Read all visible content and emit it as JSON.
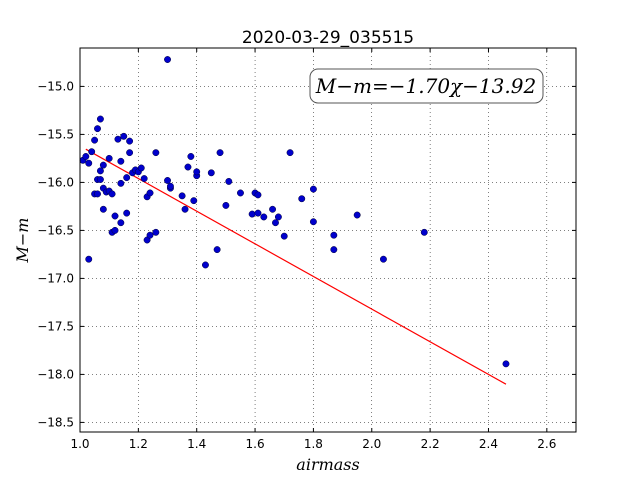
{
  "chart_data": {
    "type": "scatter",
    "title": "2020-03-29_035515",
    "xlabel": "airmass",
    "ylabel": "M−m",
    "xlim": [
      1.0,
      2.7
    ],
    "ylim": [
      -18.6,
      -14.6
    ],
    "y_inverted": true,
    "xticks": [
      "1.0",
      "1.2",
      "1.4",
      "1.6",
      "1.8",
      "2.0",
      "2.2",
      "2.4",
      "2.6"
    ],
    "yticks": [
      "−15.0",
      "−15.5",
      "−16.0",
      "−16.5",
      "−17.0",
      "−17.5",
      "−18.0",
      "−18.5"
    ],
    "grid": true,
    "annotation": "M−m=−1.70χ−13.92",
    "annotation_position": "top-right",
    "fit": {
      "slope": -1.7,
      "intercept": -13.92,
      "x_range": [
        1.02,
        2.46
      ],
      "color": "#ff0000"
    },
    "marker_color": "#0000cc",
    "points": [
      [
        1.01,
        -15.77
      ],
      [
        1.02,
        -15.73
      ],
      [
        1.03,
        -15.8
      ],
      [
        1.03,
        -16.8
      ],
      [
        1.04,
        -15.68
      ],
      [
        1.05,
        -15.56
      ],
      [
        1.05,
        -16.12
      ],
      [
        1.06,
        -16.12
      ],
      [
        1.06,
        -15.97
      ],
      [
        1.06,
        -15.44
      ],
      [
        1.07,
        -15.34
      ],
      [
        1.07,
        -15.88
      ],
      [
        1.07,
        -15.97
      ],
      [
        1.08,
        -15.82
      ],
      [
        1.08,
        -16.06
      ],
      [
        1.08,
        -16.28
      ],
      [
        1.09,
        -16.1
      ],
      [
        1.1,
        -15.75
      ],
      [
        1.1,
        -16.09
      ],
      [
        1.11,
        -16.12
      ],
      [
        1.11,
        -16.52
      ],
      [
        1.12,
        -16.35
      ],
      [
        1.12,
        -16.5
      ],
      [
        1.13,
        -15.55
      ],
      [
        1.14,
        -16.42
      ],
      [
        1.14,
        -15.78
      ],
      [
        1.14,
        -16.01
      ],
      [
        1.15,
        -15.52
      ],
      [
        1.16,
        -16.32
      ],
      [
        1.16,
        -15.95
      ],
      [
        1.17,
        -15.57
      ],
      [
        1.17,
        -15.69
      ],
      [
        1.18,
        -15.9
      ],
      [
        1.19,
        -15.87
      ],
      [
        1.2,
        -15.89
      ],
      [
        1.21,
        -15.85
      ],
      [
        1.22,
        -15.96
      ],
      [
        1.23,
        -16.15
      ],
      [
        1.24,
        -16.11
      ],
      [
        1.23,
        -16.6
      ],
      [
        1.24,
        -16.55
      ],
      [
        1.26,
        -15.69
      ],
      [
        1.26,
        -16.52
      ],
      [
        1.3,
        -14.72
      ],
      [
        1.3,
        -15.98
      ],
      [
        1.31,
        -16.06
      ],
      [
        1.31,
        -16.04
      ],
      [
        1.35,
        -16.14
      ],
      [
        1.36,
        -16.28
      ],
      [
        1.37,
        -15.84
      ],
      [
        1.38,
        -15.73
      ],
      [
        1.39,
        -16.19
      ],
      [
        1.4,
        -15.93
      ],
      [
        1.4,
        -15.89
      ],
      [
        1.43,
        -16.86
      ],
      [
        1.45,
        -15.9
      ],
      [
        1.47,
        -16.7
      ],
      [
        1.48,
        -15.69
      ],
      [
        1.5,
        -16.24
      ],
      [
        1.51,
        -15.99
      ],
      [
        1.55,
        -16.11
      ],
      [
        1.59,
        -16.33
      ],
      [
        1.6,
        -16.11
      ],
      [
        1.61,
        -16.13
      ],
      [
        1.61,
        -16.32
      ],
      [
        1.63,
        -16.36
      ],
      [
        1.66,
        -16.28
      ],
      [
        1.67,
        -16.42
      ],
      [
        1.68,
        -16.36
      ],
      [
        1.7,
        -16.56
      ],
      [
        1.72,
        -15.69
      ],
      [
        1.76,
        -16.17
      ],
      [
        1.8,
        -16.41
      ],
      [
        1.8,
        -16.07
      ],
      [
        1.87,
        -16.55
      ],
      [
        1.87,
        -16.7
      ],
      [
        1.95,
        -16.34
      ],
      [
        2.04,
        -16.8
      ],
      [
        2.18,
        -16.52
      ],
      [
        2.46,
        -17.89
      ]
    ]
  }
}
